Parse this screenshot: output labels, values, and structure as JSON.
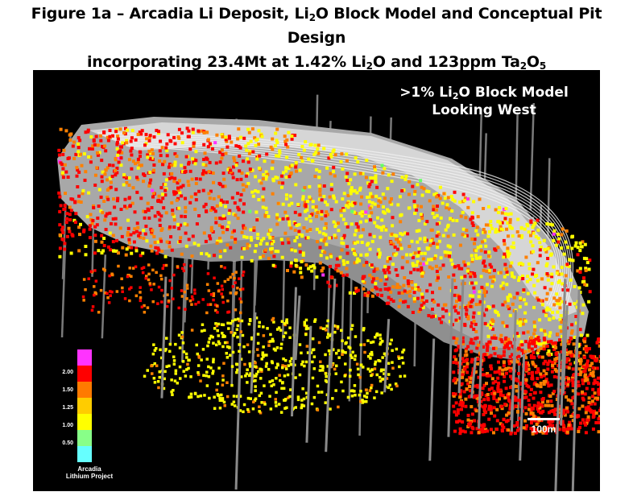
{
  "figure": {
    "title_line1_a": "Figure 1a – Arcadia Li Deposit, Li",
    "title_line1_sub": "2",
    "title_line1_b": "O Block Model and Conceptual Pit Design",
    "title_line2_a": "incorporating 23.4Mt at 1.42% Li",
    "title_line2_sub1": "2",
    "title_line2_b": "O and 123ppm Ta",
    "title_line2_sub2": "2",
    "title_line2_c": "O",
    "title_line2_sub3": "5"
  },
  "view_label": {
    "line1_a": ">1% Li",
    "line1_sub": "2",
    "line1_b": "O Block Model",
    "line2": "Looking West"
  },
  "legend": {
    "ticks": [
      "2.00",
      "1.50",
      "1.25",
      "1.00",
      "0.50"
    ],
    "caption_line1": "Arcadia",
    "caption_line2": "Lithium Project",
    "colors": [
      "#ff33ff",
      "#ff0000",
      "#ff7a00",
      "#ffcc00",
      "#ffff00",
      "#88ff88",
      "#66ffff"
    ]
  },
  "scale_bar": {
    "label": "100m"
  },
  "colors": {
    "background": "#000000",
    "pit_grey": "#bfbfbf",
    "high_grade": "#ff0000",
    "mid_grade": "#ff8000",
    "low_grade": "#ffff00",
    "very_high": "#ff33ff",
    "green": "#66ff66"
  }
}
